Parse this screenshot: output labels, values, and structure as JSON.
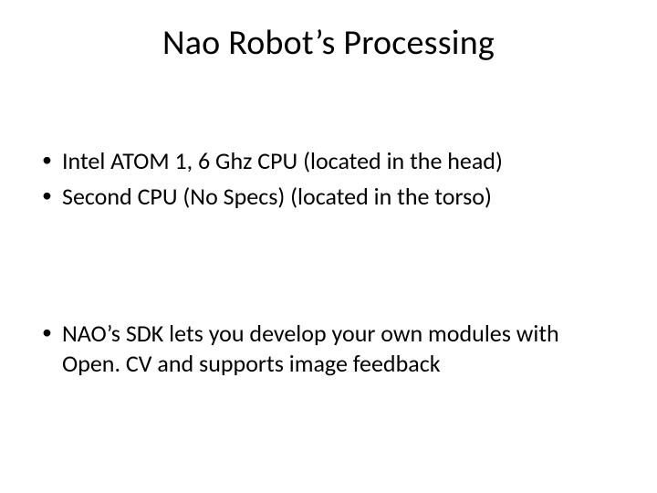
{
  "slide": {
    "title": "Nao Robot’s Processing",
    "title_fontsize": 38,
    "body_fontsize": 26,
    "text_color": "#000000",
    "background_color": "#ffffff",
    "bullet_char": "•",
    "groups": [
      {
        "items": [
          "Intel ATOM 1, 6 Ghz CPU (located in the head)",
          "Second CPU (No Specs) (located in the torso)"
        ]
      },
      {
        "items": [
          "NAO’s SDK lets you develop your own modules with Open. CV and supports image feedback"
        ]
      }
    ]
  }
}
